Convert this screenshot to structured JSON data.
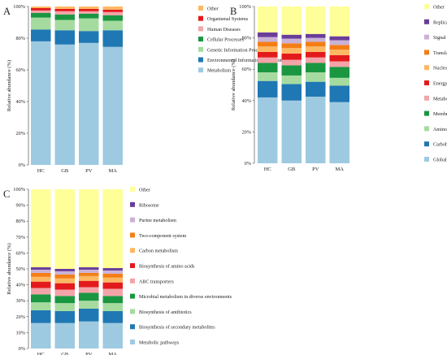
{
  "chart_data": [
    {
      "type": "bar",
      "stacked": true,
      "panel_label": "A",
      "categories": [
        "HC",
        "GB",
        "PV",
        "MA"
      ],
      "ylabel": "Relative abundance (%)",
      "ylim": [
        0,
        100
      ],
      "yticks": [
        "0%",
        "20%",
        "40%",
        "60%",
        "80%",
        "100%"
      ],
      "legend_placement": "right",
      "series": [
        {
          "name": "Metabolism",
          "color": "#9ecae1",
          "values": [
            78,
            76,
            77,
            74.5
          ]
        },
        {
          "name": "Environmental Information Processing",
          "color": "#1f78b4",
          "values": [
            7.5,
            9,
            7.5,
            10.5
          ]
        },
        {
          "name": "Genetic Information Processing",
          "color": "#a6dba0",
          "values": [
            7.5,
            6.5,
            8,
            6
          ]
        },
        {
          "name": "Cellular Processes",
          "color": "#1a9641",
          "values": [
            3,
            3.5,
            3,
            3.5
          ]
        },
        {
          "name": "Human Diseases",
          "color": "#f4a3a8",
          "values": [
            1.5,
            2,
            1.5,
            2
          ]
        },
        {
          "name": "Organismal Systems",
          "color": "#e31a1c",
          "values": [
            1.5,
            1.5,
            1.5,
            1.5
          ]
        },
        {
          "name": "Other",
          "color": "#fdb863",
          "values": [
            1,
            1.5,
            1.5,
            2
          ]
        }
      ]
    },
    {
      "type": "bar",
      "stacked": true,
      "panel_label": "B",
      "categories": [
        "HC",
        "GB",
        "PV",
        "MA"
      ],
      "ylabel": "Relative abundance (%)",
      "ylim": [
        0,
        100
      ],
      "yticks": [
        "0%",
        "20%",
        "40%",
        "60%",
        "80%",
        "100%"
      ],
      "legend_placement": "right",
      "series": [
        {
          "name": "Global and overview maps",
          "color": "#9ecae1",
          "values": [
            42,
            40,
            42.5,
            39
          ]
        },
        {
          "name": "Carbohydrate metabolism",
          "color": "#1f78b4",
          "values": [
            10.5,
            10.5,
            9.5,
            10.5
          ]
        },
        {
          "name": "Amino acid metabolism",
          "color": "#a6dba0",
          "values": [
            5.5,
            5.5,
            6,
            5
          ]
        },
        {
          "name": "Membrane transport",
          "color": "#1a9641",
          "values": [
            6,
            6.5,
            6,
            7
          ]
        },
        {
          "name": "Metabolism of cofactors and vitamins",
          "color": "#f4a3a8",
          "values": [
            3.5,
            3.5,
            3.5,
            3.5
          ]
        },
        {
          "name": "Energy metabolism",
          "color": "#e31a1c",
          "values": [
            3.5,
            4,
            3.5,
            4
          ]
        },
        {
          "name": "Nucleotide metabolism",
          "color": "#fdb863",
          "values": [
            3.5,
            3.5,
            3.5,
            3.5
          ]
        },
        {
          "name": "Translation",
          "color": "#f47e16",
          "values": [
            3,
            3,
            3,
            3
          ]
        },
        {
          "name": "Signal transduction",
          "color": "#cab2d6",
          "values": [
            3,
            3,
            2.5,
            3
          ]
        },
        {
          "name": "Replication and repair",
          "color": "#6a3d9a",
          "values": [
            3,
            2.5,
            2.5,
            2.5
          ]
        },
        {
          "name": "Other",
          "color": "#ffff99",
          "values": [
            16.5,
            18,
            17.5,
            19
          ]
        }
      ]
    },
    {
      "type": "bar",
      "stacked": true,
      "panel_label": "C",
      "categories": [
        "HC",
        "GB",
        "PV",
        "MA"
      ],
      "ylabel": "Relative abundance (%)",
      "ylim": [
        0,
        100
      ],
      "yticks": [
        "0%",
        "10%",
        "20%",
        "30%",
        "40%",
        "50%",
        "60%",
        "70%",
        "80%",
        "90%",
        "100%"
      ],
      "legend_placement": "right",
      "series": [
        {
          "name": "Metabolic pathways",
          "color": "#9ecae1",
          "values": [
            16,
            16,
            17,
            16
          ]
        },
        {
          "name": "Biosynthesis of secondary metabolites",
          "color": "#1f78b4",
          "values": [
            8,
            7.5,
            8,
            7.5
          ]
        },
        {
          "name": "Biosynthesis of antibiotics",
          "color": "#a6dba0",
          "values": [
            5,
            5,
            5,
            5
          ]
        },
        {
          "name": "Microbial metabolism in diverse environments",
          "color": "#1a9641",
          "values": [
            5,
            4.5,
            5,
            4.5
          ]
        },
        {
          "name": "ABC transporters",
          "color": "#f4a3a8",
          "values": [
            4,
            4,
            3.5,
            4.5
          ]
        },
        {
          "name": "Biosynthesis of amino acids",
          "color": "#e31a1c",
          "values": [
            4,
            4,
            4,
            4
          ]
        },
        {
          "name": "Carbon metabolism",
          "color": "#fdb863",
          "values": [
            3,
            3,
            3,
            3
          ]
        },
        {
          "name": "Two-component system",
          "color": "#f47e16",
          "values": [
            2.5,
            2.5,
            2,
            2.5
          ]
        },
        {
          "name": "Purine metabolism",
          "color": "#cab2d6",
          "values": [
            2,
            2,
            2,
            2
          ]
        },
        {
          "name": "Ribosome",
          "color": "#6a3d9a",
          "values": [
            1.5,
            1.5,
            1.5,
            1.5
          ]
        },
        {
          "name": "Other",
          "color": "#ffff99",
          "values": [
            49,
            50,
            49,
            49.5
          ]
        }
      ]
    }
  ]
}
